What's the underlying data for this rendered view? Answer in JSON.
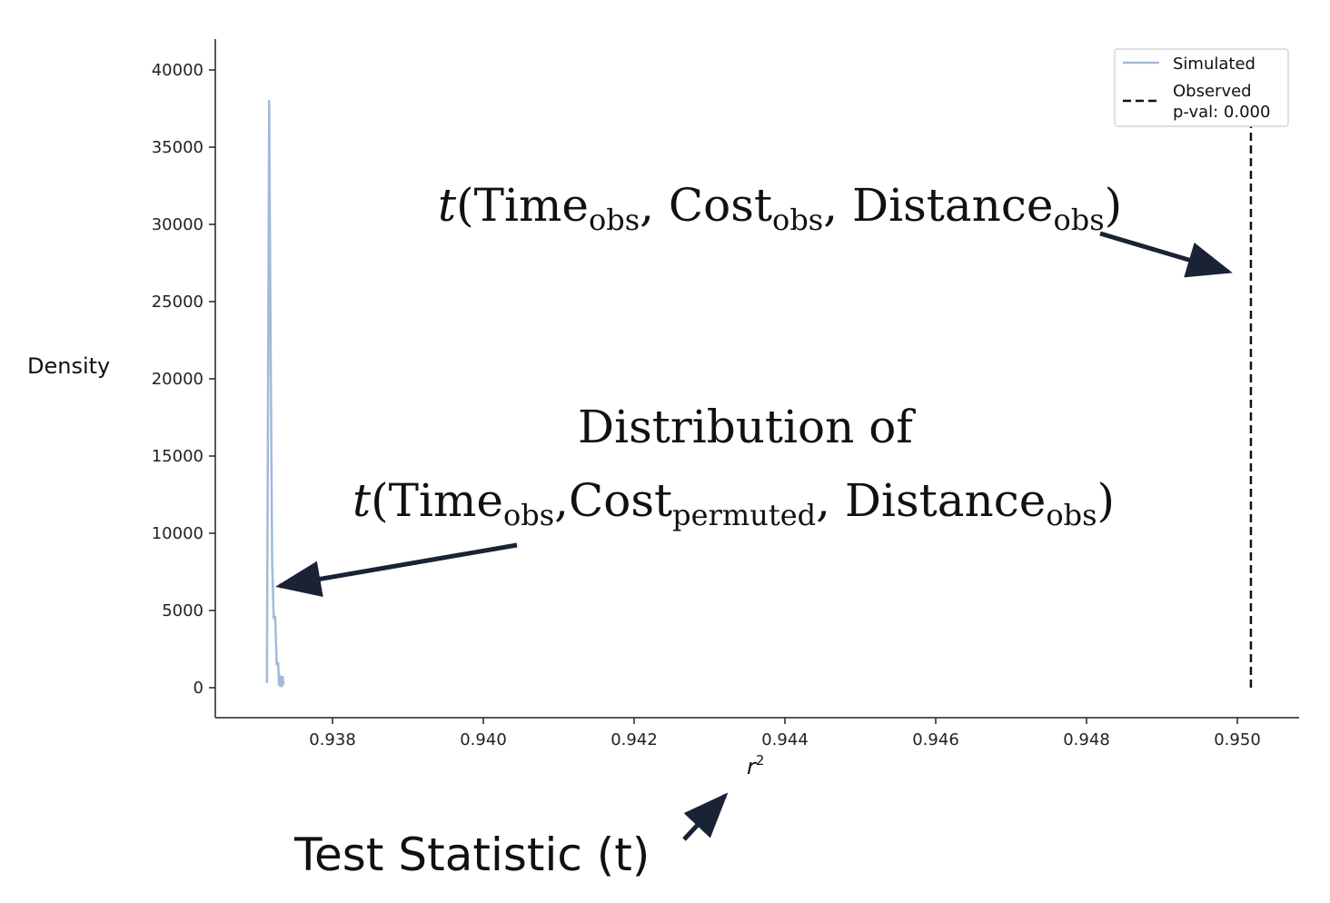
{
  "chart_data": {
    "type": "line",
    "ylabel": "Density",
    "xlabel": "r",
    "xlabel_sup": "2",
    "xlim": [
      0.93625,
      0.95075
    ],
    "ylim": [
      -2000,
      42000
    ],
    "x_ticks": [
      0.938,
      0.94,
      0.942,
      0.944,
      0.946,
      0.948,
      0.95
    ],
    "x_tick_labels": [
      "0.938",
      "0.940",
      "0.942",
      "0.944",
      "0.946",
      "0.948",
      "0.950"
    ],
    "y_ticks": [
      0,
      5000,
      10000,
      15000,
      20000,
      25000,
      30000,
      35000,
      40000
    ],
    "y_tick_labels": [
      "0",
      "5000",
      "10000",
      "15000",
      "20000",
      "25000",
      "30000",
      "35000",
      "40000"
    ],
    "series": [
      {
        "name": "Simulated",
        "color": "#a3b9d8",
        "x": [
          0.93713,
          0.93716,
          0.93718,
          0.9372,
          0.93722,
          0.93724,
          0.93726,
          0.93728,
          0.93729,
          0.9373,
          0.93731,
          0.93732,
          0.93733,
          0.93734,
          0.93735
        ],
        "y": [
          300,
          38000,
          22000,
          8000,
          4500,
          4600,
          1500,
          1600,
          200,
          800,
          100,
          700,
          100,
          700,
          200
        ]
      }
    ],
    "observed": {
      "name": "Observed",
      "x": 0.95018,
      "y_range": [
        0,
        40000
      ],
      "style": "dashed",
      "color": "#111111"
    },
    "legend": {
      "position": "top-right",
      "entries": [
        "Simulated",
        "Observed",
        "p-val: 0.000"
      ]
    },
    "annotations": {
      "observed_label": {
        "func": "t",
        "args": [
          {
            "base": "Time",
            "sub": "obs"
          },
          {
            "base": "Cost",
            "sub": "obs"
          },
          {
            "base": "Distance",
            "sub": "obs"
          }
        ]
      },
      "distribution_title": "Distribution of",
      "distribution_label": {
        "func": "t",
        "args": [
          {
            "base": "Time",
            "sub": "obs"
          },
          {
            "base": "Cost",
            "sub": "permuted"
          },
          {
            "base": "Distance",
            "sub": "obs"
          }
        ]
      },
      "test_statistic": "Test Statistic (t)"
    },
    "arrow_color": "#1a2235"
  }
}
